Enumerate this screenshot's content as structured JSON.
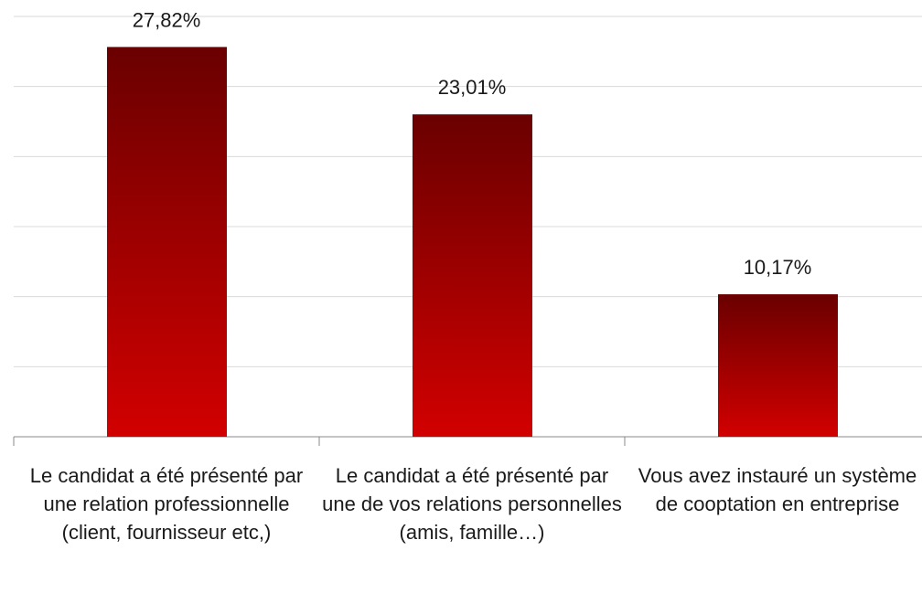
{
  "chart_data": {
    "type": "bar",
    "categories": [
      "Le candidat a été présenté par une relation professionnelle (client, fournisseur etc,)",
      "Le candidat a été présenté par une de vos relations personnelles (amis, famille…)",
      "Vous avez instauré un système de cooptation en entreprise"
    ],
    "values": [
      27.82,
      23.01,
      10.17
    ],
    "value_labels": [
      "27,82%",
      "23,01%",
      "10,17%"
    ],
    "color": "#c00000",
    "ylim": [
      0,
      30
    ],
    "yticks": [
      0,
      5,
      10,
      15,
      20,
      25,
      30
    ],
    "grid": true
  }
}
